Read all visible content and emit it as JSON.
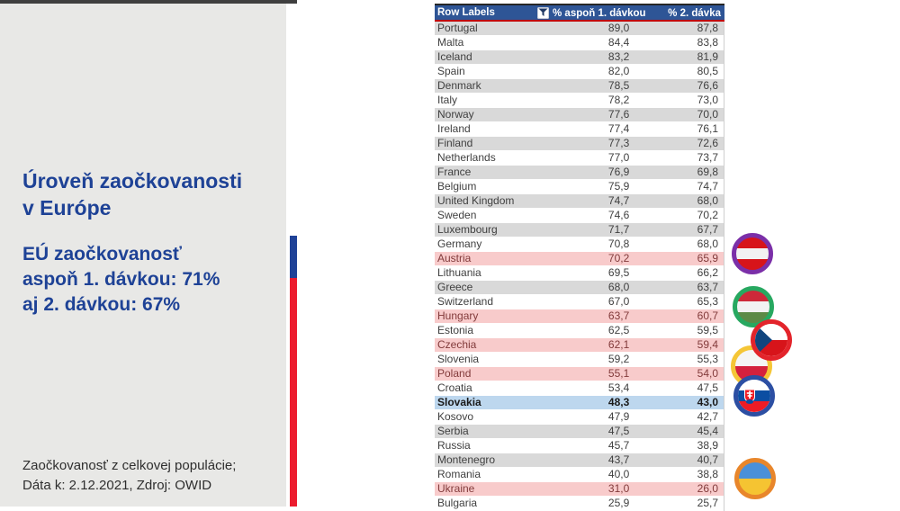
{
  "panel": {
    "title_lines": [
      "Úroveň zaočkovanosti",
      "v Európe"
    ],
    "stats_lines": [
      "EÚ zaočkovanosť",
      "aspoň 1. dávkou: 71%",
      "aj 2. dávkou: 67%"
    ],
    "footnote_lines": [
      "Zaočkovanosť z celkovej populácie;",
      "Dáta k: 2.12.2021, Zdroj: OWID"
    ],
    "accent_blue": "#1f4297",
    "accent_red": "#ec1c2e"
  },
  "table": {
    "headers": [
      "Row Labels",
      "% aspoň 1. dávkou",
      "% 2. dávka"
    ],
    "filter_icon": "funnel-dropdown-icon",
    "header_bg": "#2e5596",
    "highlight_pink": "#f8cbcb",
    "highlight_selected": "#bdd7ee",
    "rows": [
      {
        "country": "Portugal",
        "dose1": "89,0",
        "dose2": "87,8",
        "style": "gray"
      },
      {
        "country": "Malta",
        "dose1": "84,4",
        "dose2": "83,8",
        "style": "white"
      },
      {
        "country": "Iceland",
        "dose1": "83,2",
        "dose2": "81,9",
        "style": "gray"
      },
      {
        "country": "Spain",
        "dose1": "82,0",
        "dose2": "80,5",
        "style": "white"
      },
      {
        "country": "Denmark",
        "dose1": "78,5",
        "dose2": "76,6",
        "style": "gray"
      },
      {
        "country": "Italy",
        "dose1": "78,2",
        "dose2": "73,0",
        "style": "white"
      },
      {
        "country": "Norway",
        "dose1": "77,6",
        "dose2": "70,0",
        "style": "gray"
      },
      {
        "country": "Ireland",
        "dose1": "77,4",
        "dose2": "76,1",
        "style": "white"
      },
      {
        "country": "Finland",
        "dose1": "77,3",
        "dose2": "72,6",
        "style": "gray"
      },
      {
        "country": "Netherlands",
        "dose1": "77,0",
        "dose2": "73,7",
        "style": "white"
      },
      {
        "country": "France",
        "dose1": "76,9",
        "dose2": "69,8",
        "style": "gray"
      },
      {
        "country": "Belgium",
        "dose1": "75,9",
        "dose2": "74,7",
        "style": "white"
      },
      {
        "country": "United Kingdom",
        "dose1": "74,7",
        "dose2": "68,0",
        "style": "gray"
      },
      {
        "country": "Sweden",
        "dose1": "74,6",
        "dose2": "70,2",
        "style": "white"
      },
      {
        "country": "Luxembourg",
        "dose1": "71,7",
        "dose2": "67,7",
        "style": "gray"
      },
      {
        "country": "Germany",
        "dose1": "70,8",
        "dose2": "68,0",
        "style": "white"
      },
      {
        "country": "Austria",
        "dose1": "70,2",
        "dose2": "65,9",
        "style": "pink"
      },
      {
        "country": "Lithuania",
        "dose1": "69,5",
        "dose2": "66,2",
        "style": "white"
      },
      {
        "country": "Greece",
        "dose1": "68,0",
        "dose2": "63,7",
        "style": "gray"
      },
      {
        "country": "Switzerland",
        "dose1": "67,0",
        "dose2": "65,3",
        "style": "white"
      },
      {
        "country": "Hungary",
        "dose1": "63,7",
        "dose2": "60,7",
        "style": "pink"
      },
      {
        "country": "Estonia",
        "dose1": "62,5",
        "dose2": "59,5",
        "style": "white"
      },
      {
        "country": "Czechia",
        "dose1": "62,1",
        "dose2": "59,4",
        "style": "pink"
      },
      {
        "country": "Slovenia",
        "dose1": "59,2",
        "dose2": "55,3",
        "style": "white"
      },
      {
        "country": "Poland",
        "dose1": "55,1",
        "dose2": "54,0",
        "style": "pink"
      },
      {
        "country": "Croatia",
        "dose1": "53,4",
        "dose2": "47,5",
        "style": "white"
      },
      {
        "country": "Slovakia",
        "dose1": "48,3",
        "dose2": "43,0",
        "style": "selected"
      },
      {
        "country": "Kosovo",
        "dose1": "47,9",
        "dose2": "42,7",
        "style": "white"
      },
      {
        "country": "Serbia",
        "dose1": "47,5",
        "dose2": "45,4",
        "style": "gray"
      },
      {
        "country": "Russia",
        "dose1": "45,7",
        "dose2": "38,9",
        "style": "white"
      },
      {
        "country": "Montenegro",
        "dose1": "43,7",
        "dose2": "40,7",
        "style": "gray"
      },
      {
        "country": "Romania",
        "dose1": "40,0",
        "dose2": "38,8",
        "style": "white"
      },
      {
        "country": "Ukraine",
        "dose1": "31,0",
        "dose2": "26,0",
        "style": "pink"
      },
      {
        "country": "Bulgaria",
        "dose1": "25,9",
        "dose2": "25,7",
        "style": "white"
      }
    ]
  },
  "flags": [
    {
      "id": "austria",
      "country": "Austria",
      "ring": "#7b2fa8",
      "type": "stripes",
      "colors": [
        "#d7141a",
        "#f2f2f2",
        "#d7141a"
      ]
    },
    {
      "id": "hungary",
      "country": "Hungary",
      "ring": "#27a860",
      "type": "stripes",
      "colors": [
        "#ce2939",
        "#f2f2f2",
        "#5c8a46"
      ]
    },
    {
      "id": "poland",
      "country": "Poland",
      "ring": "#f5c636",
      "type": "stripes",
      "colors": [
        "#f5f5f5",
        "#d4213d"
      ]
    },
    {
      "id": "czechia",
      "country": "Czechia",
      "ring": "#e3242b",
      "type": "czech",
      "colors": [
        "#ffffff",
        "#d7141a",
        "#11457e"
      ]
    },
    {
      "id": "slovakia",
      "country": "Slovakia",
      "ring": "#2c4fa3",
      "type": "slovak",
      "colors": [
        "#ffffff",
        "#0b4ea2",
        "#ee1c25"
      ]
    },
    {
      "id": "ukraine",
      "country": "Ukraine",
      "ring": "#e8862b",
      "type": "stripes",
      "colors": [
        "#4a90d9",
        "#f5c432"
      ]
    }
  ]
}
